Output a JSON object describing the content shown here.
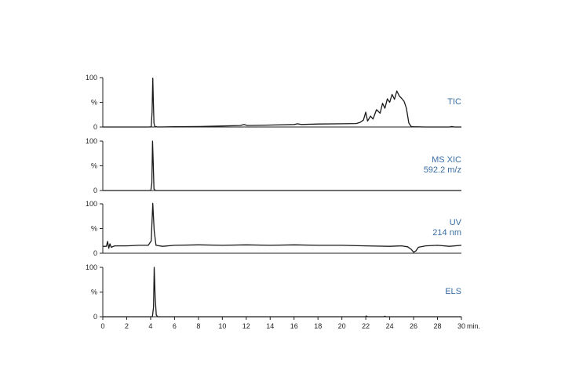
{
  "chart_data": {
    "type": "line",
    "x_unit_label": "min.",
    "x_range": [
      0,
      30
    ],
    "x_ticks": [
      0,
      2,
      4,
      6,
      8,
      10,
      12,
      14,
      16,
      18,
      20,
      22,
      24,
      26,
      28,
      30
    ],
    "y_range": [
      0,
      100
    ],
    "y_tick_labels": [
      "0",
      "%",
      "100"
    ],
    "label_color": "#3a6ea5",
    "line_color": "#1a1a1a",
    "grid": false,
    "panels": [
      {
        "label_lines": [
          "TIC"
        ],
        "points": [
          [
            0,
            0
          ],
          [
            3.9,
            0
          ],
          [
            4.05,
            0.5
          ],
          [
            4.12,
            30
          ],
          [
            4.18,
            99
          ],
          [
            4.22,
            60
          ],
          [
            4.28,
            8
          ],
          [
            4.35,
            1
          ],
          [
            4.6,
            0
          ],
          [
            6,
            0.5
          ],
          [
            8,
            1
          ],
          [
            10,
            2
          ],
          [
            11.5,
            3
          ],
          [
            11.8,
            5
          ],
          [
            12.1,
            3
          ],
          [
            14,
            4
          ],
          [
            16,
            5
          ],
          [
            16.3,
            6.5
          ],
          [
            16.6,
            5
          ],
          [
            18,
            6
          ],
          [
            20,
            6.5
          ],
          [
            21.2,
            7
          ],
          [
            21.5,
            9
          ],
          [
            21.8,
            14
          ],
          [
            22.0,
            30
          ],
          [
            22.15,
            12
          ],
          [
            22.4,
            22
          ],
          [
            22.6,
            16
          ],
          [
            22.9,
            35
          ],
          [
            23.2,
            28
          ],
          [
            23.4,
            48
          ],
          [
            23.6,
            38
          ],
          [
            23.8,
            57
          ],
          [
            24.0,
            50
          ],
          [
            24.2,
            66
          ],
          [
            24.4,
            56
          ],
          [
            24.6,
            73
          ],
          [
            24.8,
            63
          ],
          [
            25.0,
            58
          ],
          [
            25.2,
            52
          ],
          [
            25.4,
            38
          ],
          [
            25.6,
            8
          ],
          [
            25.8,
            1
          ],
          [
            26,
            0.5
          ],
          [
            27,
            0
          ],
          [
            29,
            0
          ],
          [
            29.2,
            1
          ],
          [
            29.4,
            0
          ],
          [
            30,
            0
          ]
        ]
      },
      {
        "label_lines": [
          "MS XIC",
          "592.2 m/z"
        ],
        "points": [
          [
            0,
            0
          ],
          [
            4.02,
            0
          ],
          [
            4.1,
            15
          ],
          [
            4.16,
            100
          ],
          [
            4.22,
            55
          ],
          [
            4.28,
            3
          ],
          [
            4.4,
            0
          ],
          [
            30,
            0
          ]
        ]
      },
      {
        "label_lines": [
          "UV",
          "214 nm"
        ],
        "points": [
          [
            0,
            14
          ],
          [
            0.3,
            14
          ],
          [
            0.4,
            24
          ],
          [
            0.5,
            10
          ],
          [
            0.6,
            19
          ],
          [
            0.7,
            12
          ],
          [
            1.0,
            15
          ],
          [
            2,
            15
          ],
          [
            3,
            16
          ],
          [
            3.8,
            16
          ],
          [
            4.05,
            25
          ],
          [
            4.18,
            101
          ],
          [
            4.3,
            45
          ],
          [
            4.45,
            16
          ],
          [
            5,
            14
          ],
          [
            6,
            16
          ],
          [
            8,
            17
          ],
          [
            10,
            16
          ],
          [
            12,
            17
          ],
          [
            14,
            16
          ],
          [
            16,
            17
          ],
          [
            18,
            16
          ],
          [
            20,
            16
          ],
          [
            22,
            15
          ],
          [
            24,
            14
          ],
          [
            25,
            15
          ],
          [
            25.5,
            13
          ],
          [
            25.8,
            8
          ],
          [
            26.0,
            2
          ],
          [
            26.2,
            5
          ],
          [
            26.4,
            12
          ],
          [
            27,
            15
          ],
          [
            28,
            16
          ],
          [
            29,
            14
          ],
          [
            30,
            16
          ]
        ]
      },
      {
        "label_lines": [
          "ELS"
        ],
        "points": [
          [
            0,
            0
          ],
          [
            4.15,
            0
          ],
          [
            4.25,
            20
          ],
          [
            4.3,
            100
          ],
          [
            4.38,
            40
          ],
          [
            4.48,
            3
          ],
          [
            4.6,
            0
          ],
          [
            21.95,
            0
          ],
          [
            22.05,
            1.5
          ],
          [
            22.15,
            0
          ],
          [
            23.5,
            0
          ],
          [
            23.6,
            1
          ],
          [
            23.7,
            0
          ],
          [
            30,
            0
          ]
        ]
      }
    ]
  }
}
